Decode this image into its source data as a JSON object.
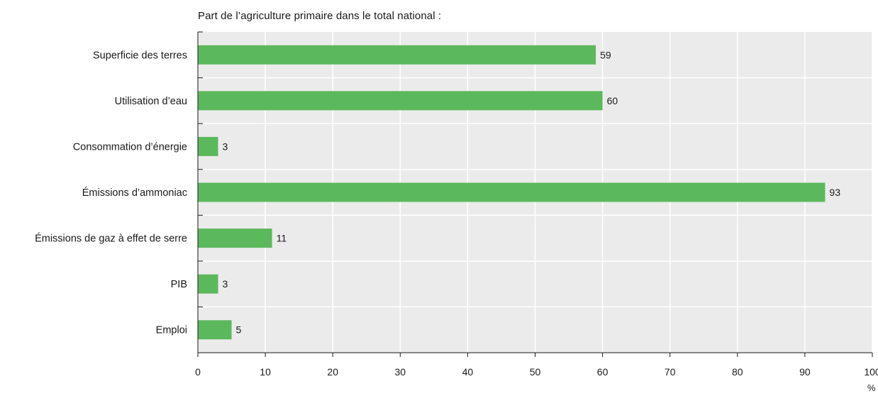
{
  "chart_data": {
    "type": "bar",
    "orientation": "horizontal",
    "title": "Part de l’agriculture primaire dans le total national :",
    "xlabel": "%",
    "ylabel": "",
    "categories": [
      "Superficie des terres",
      "Utilisation d’eau",
      "Consommation d’énergie",
      "Émissions d’ammoniac",
      "Émissions de gaz à effet de serre",
      "PIB",
      "Emploi"
    ],
    "values": [
      59,
      60,
      3,
      93,
      11,
      3,
      5
    ],
    "xlim": [
      0,
      100
    ],
    "xticks": [
      0,
      10,
      20,
      30,
      40,
      50,
      60,
      70,
      80,
      90,
      100
    ],
    "grid": true,
    "colors": {
      "bar": "#5cb85c",
      "plot_background": "#ebebeb",
      "grid": "#ffffff",
      "axis": "#1a1a1a"
    }
  }
}
